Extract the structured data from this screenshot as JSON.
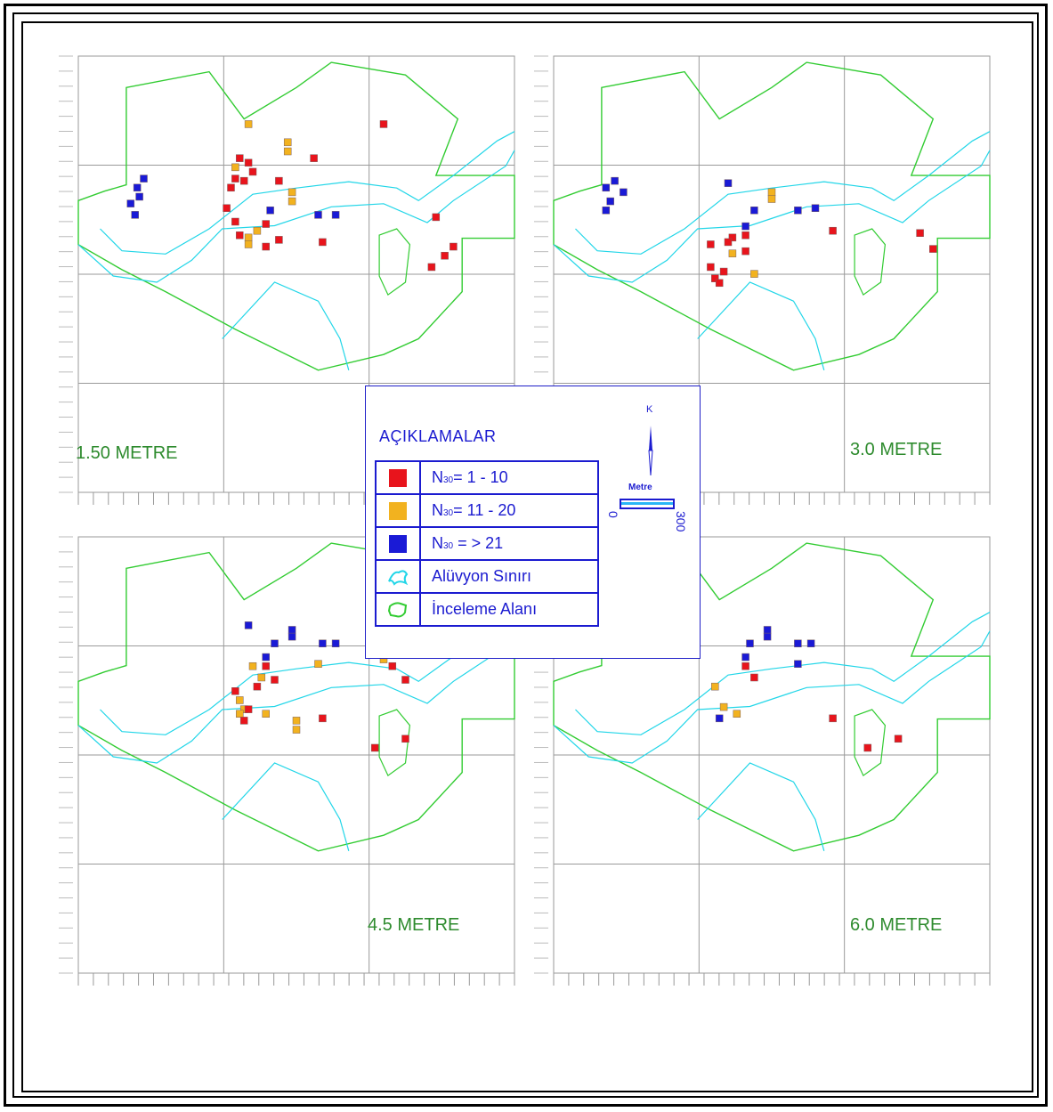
{
  "colors": {
    "low": "#e8141c",
    "mid": "#f2b21f",
    "high": "#1a1ad6",
    "alluvium": "#22d6e8",
    "study_area": "#33cc33",
    "grid": "#9a9a9a",
    "text_blue": "#1b1bd0",
    "depth_label": "#2e8b2e"
  },
  "panels": [
    {
      "id": "p1",
      "depth_label": "1.50  METRE",
      "points": [
        {
          "c": "high",
          "x": 0.135,
          "y": 0.58
        },
        {
          "c": "high",
          "x": 0.15,
          "y": 0.54
        },
        {
          "c": "high",
          "x": 0.14,
          "y": 0.62
        },
        {
          "c": "high",
          "x": 0.12,
          "y": 0.65
        },
        {
          "c": "high",
          "x": 0.13,
          "y": 0.7
        },
        {
          "c": "low",
          "x": 0.38,
          "y": 0.55
        },
        {
          "c": "mid",
          "x": 0.49,
          "y": 0.6
        },
        {
          "c": "mid",
          "x": 0.49,
          "y": 0.64
        },
        {
          "c": "high",
          "x": 0.44,
          "y": 0.68
        },
        {
          "c": "high",
          "x": 0.55,
          "y": 0.7
        },
        {
          "c": "high",
          "x": 0.59,
          "y": 0.7
        },
        {
          "c": "low",
          "x": 0.82,
          "y": 0.71
        },
        {
          "c": "mid",
          "x": 0.41,
          "y": 0.77
        },
        {
          "c": "mid",
          "x": 0.39,
          "y": 0.8
        },
        {
          "c": "mid",
          "x": 0.39,
          "y": 0.83
        },
        {
          "c": "low",
          "x": 0.43,
          "y": 0.84
        },
        {
          "c": "low",
          "x": 0.56,
          "y": 0.82
        },
        {
          "c": "low",
          "x": 0.81,
          "y": 0.93
        },
        {
          "c": "low",
          "x": 0.84,
          "y": 0.88
        },
        {
          "c": "low",
          "x": 0.86,
          "y": 0.84
        },
        {
          "c": "low",
          "x": 0.43,
          "y": 0.74
        },
        {
          "c": "low",
          "x": 0.46,
          "y": 0.81
        },
        {
          "c": "low",
          "x": 0.37,
          "y": 0.79
        },
        {
          "c": "low",
          "x": 0.36,
          "y": 0.73
        },
        {
          "c": "low",
          "x": 0.34,
          "y": 0.67
        },
        {
          "c": "low",
          "x": 0.35,
          "y": 0.58
        },
        {
          "c": "low",
          "x": 0.36,
          "y": 0.54
        },
        {
          "c": "low",
          "x": 0.4,
          "y": 0.51
        },
        {
          "c": "mid",
          "x": 0.36,
          "y": 0.49
        },
        {
          "c": "low",
          "x": 0.37,
          "y": 0.45
        },
        {
          "c": "low",
          "x": 0.39,
          "y": 0.47
        },
        {
          "c": "low",
          "x": 0.46,
          "y": 0.55
        },
        {
          "c": "mid",
          "x": 0.48,
          "y": 0.38
        },
        {
          "c": "mid",
          "x": 0.48,
          "y": 0.42
        },
        {
          "c": "low",
          "x": 0.54,
          "y": 0.45
        },
        {
          "c": "mid",
          "x": 0.39,
          "y": 0.3
        },
        {
          "c": "low",
          "x": 0.7,
          "y": 0.3
        }
      ]
    },
    {
      "id": "p2",
      "depth_label": "3.0   METRE",
      "points": [
        {
          "c": "high",
          "x": 0.12,
          "y": 0.58
        },
        {
          "c": "high",
          "x": 0.14,
          "y": 0.55
        },
        {
          "c": "high",
          "x": 0.16,
          "y": 0.6
        },
        {
          "c": "high",
          "x": 0.13,
          "y": 0.64
        },
        {
          "c": "high",
          "x": 0.12,
          "y": 0.68
        },
        {
          "c": "high",
          "x": 0.4,
          "y": 0.56
        },
        {
          "c": "mid",
          "x": 0.5,
          "y": 0.6
        },
        {
          "c": "mid",
          "x": 0.5,
          "y": 0.63
        },
        {
          "c": "high",
          "x": 0.46,
          "y": 0.68
        },
        {
          "c": "high",
          "x": 0.56,
          "y": 0.68
        },
        {
          "c": "high",
          "x": 0.6,
          "y": 0.67
        },
        {
          "c": "high",
          "x": 0.44,
          "y": 0.75
        },
        {
          "c": "low",
          "x": 0.41,
          "y": 0.8
        },
        {
          "c": "low",
          "x": 0.44,
          "y": 0.79
        },
        {
          "c": "low",
          "x": 0.64,
          "y": 0.77
        },
        {
          "c": "low",
          "x": 0.84,
          "y": 0.78
        },
        {
          "c": "low",
          "x": 0.87,
          "y": 0.85
        },
        {
          "c": "mid",
          "x": 0.41,
          "y": 0.87
        },
        {
          "c": "low",
          "x": 0.44,
          "y": 0.86
        },
        {
          "c": "low",
          "x": 0.4,
          "y": 0.82
        },
        {
          "c": "low",
          "x": 0.36,
          "y": 0.83
        },
        {
          "c": "low",
          "x": 0.36,
          "y": 0.93
        },
        {
          "c": "low",
          "x": 0.37,
          "y": 0.98
        },
        {
          "c": "low",
          "x": 0.39,
          "y": 0.95
        },
        {
          "c": "low",
          "x": 0.38,
          "y": 1.0
        },
        {
          "c": "mid",
          "x": 0.46,
          "y": 0.96
        }
      ]
    },
    {
      "id": "p3",
      "depth_label": "4.5   METRE",
      "points": [
        {
          "c": "high",
          "x": 0.39,
          "y": 0.39
        },
        {
          "c": "high",
          "x": 0.49,
          "y": 0.41
        },
        {
          "c": "high",
          "x": 0.49,
          "y": 0.44
        },
        {
          "c": "high",
          "x": 0.45,
          "y": 0.47
        },
        {
          "c": "high",
          "x": 0.56,
          "y": 0.47
        },
        {
          "c": "high",
          "x": 0.59,
          "y": 0.47
        },
        {
          "c": "high",
          "x": 0.43,
          "y": 0.53
        },
        {
          "c": "mid",
          "x": 0.55,
          "y": 0.56
        },
        {
          "c": "mid",
          "x": 0.7,
          "y": 0.54
        },
        {
          "c": "low",
          "x": 0.72,
          "y": 0.57
        },
        {
          "c": "mid",
          "x": 0.4,
          "y": 0.57
        },
        {
          "c": "mid",
          "x": 0.42,
          "y": 0.62
        },
        {
          "c": "low",
          "x": 0.43,
          "y": 0.57
        },
        {
          "c": "low",
          "x": 0.45,
          "y": 0.63
        },
        {
          "c": "low",
          "x": 0.41,
          "y": 0.66
        },
        {
          "c": "low",
          "x": 0.75,
          "y": 0.63
        },
        {
          "c": "low",
          "x": 0.36,
          "y": 0.68
        },
        {
          "c": "mid",
          "x": 0.37,
          "y": 0.72
        },
        {
          "c": "mid",
          "x": 0.38,
          "y": 0.76
        },
        {
          "c": "mid",
          "x": 0.37,
          "y": 0.78
        },
        {
          "c": "low",
          "x": 0.39,
          "y": 0.76
        },
        {
          "c": "low",
          "x": 0.38,
          "y": 0.81
        },
        {
          "c": "mid",
          "x": 0.43,
          "y": 0.78
        },
        {
          "c": "mid",
          "x": 0.5,
          "y": 0.81
        },
        {
          "c": "mid",
          "x": 0.5,
          "y": 0.85
        },
        {
          "c": "low",
          "x": 0.56,
          "y": 0.8
        },
        {
          "c": "low",
          "x": 0.68,
          "y": 0.93
        },
        {
          "c": "low",
          "x": 0.75,
          "y": 0.89
        }
      ]
    },
    {
      "id": "p4",
      "depth_label": "6.0   METRE",
      "points": [
        {
          "c": "high",
          "x": 0.49,
          "y": 0.41
        },
        {
          "c": "high",
          "x": 0.49,
          "y": 0.44
        },
        {
          "c": "high",
          "x": 0.45,
          "y": 0.47
        },
        {
          "c": "high",
          "x": 0.56,
          "y": 0.47
        },
        {
          "c": "high",
          "x": 0.59,
          "y": 0.47
        },
        {
          "c": "high",
          "x": 0.44,
          "y": 0.53
        },
        {
          "c": "low",
          "x": 0.44,
          "y": 0.57
        },
        {
          "c": "high",
          "x": 0.56,
          "y": 0.56
        },
        {
          "c": "low",
          "x": 0.46,
          "y": 0.62
        },
        {
          "c": "mid",
          "x": 0.37,
          "y": 0.66
        },
        {
          "c": "mid",
          "x": 0.39,
          "y": 0.75
        },
        {
          "c": "mid",
          "x": 0.42,
          "y": 0.78
        },
        {
          "c": "high",
          "x": 0.38,
          "y": 0.8
        },
        {
          "c": "low",
          "x": 0.64,
          "y": 0.8
        },
        {
          "c": "low",
          "x": 0.72,
          "y": 0.93
        },
        {
          "c": "low",
          "x": 0.79,
          "y": 0.89
        }
      ]
    }
  ],
  "legend": {
    "title": "AÇIKLAMALAR",
    "items": [
      {
        "swatch": "low",
        "label_prefix": "N",
        "label_sub": "30",
        "label_rest": "= 1 - 10"
      },
      {
        "swatch": "mid",
        "label_prefix": "N",
        "label_sub": "30",
        "label_rest": "= 11 - 20"
      },
      {
        "swatch": "high",
        "label_prefix": "N",
        "label_sub": "30",
        "label_rest": " =  > 21"
      },
      {
        "swatch": "alluvium-icon",
        "label_prefix": "Alüvyon Sınırı",
        "label_sub": "",
        "label_rest": ""
      },
      {
        "swatch": "study-area-icon",
        "label_prefix": "İnceleme Alanı",
        "label_sub": "",
        "label_rest": ""
      }
    ],
    "north_label": "K",
    "scale_unit": "Metre",
    "scale_start": "0",
    "scale_end": "300"
  }
}
